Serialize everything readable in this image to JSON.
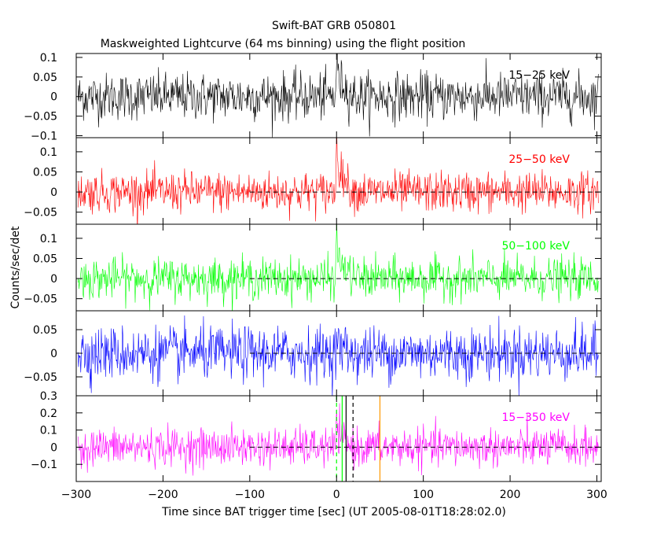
{
  "chart_data": {
    "type": "line",
    "title": "Swift-BAT GRB 050801",
    "subtitle": "Maskweighted Lightcurve (64 ms binning) using the flight position",
    "xlabel": "Time since BAT trigger time [sec] (UT 2005-08-01T18:28:02.0)",
    "ylabel": "Counts/sec/det",
    "xlim": [
      -300,
      305
    ],
    "x_ticks": [
      -300,
      -200,
      -100,
      0,
      100,
      200,
      300
    ],
    "x_tick_labels": [
      "−300",
      "−200",
      "−100",
      "0",
      "100",
      "200",
      "300"
    ],
    "bin_seconds": 0.064,
    "panels": [
      {
        "label": "15−25 keV",
        "color": "#000000",
        "ylim": [
          -0.105,
          0.11
        ],
        "yticks": [
          -0.1,
          -0.05,
          0,
          0.05,
          0.1
        ],
        "ytick_labels": [
          "−0.1",
          "−0.05",
          "0",
          "0.05",
          "0.1"
        ],
        "noise_sigma": 0.03,
        "burst_peak": 0.1,
        "zero_line": false
      },
      {
        "label": "25−50 keV",
        "color": "#ff0000",
        "ylim": [
          -0.08,
          0.135
        ],
        "yticks": [
          -0.05,
          0,
          0.05,
          0.1
        ],
        "ytick_labels": [
          "−0.05",
          "0",
          "0.05",
          "0.1"
        ],
        "noise_sigma": 0.025,
        "burst_peak": 0.13,
        "zero_line": true
      },
      {
        "label": "50−100 keV",
        "color": "#00ff00",
        "ylim": [
          -0.08,
          0.135
        ],
        "yticks": [
          -0.05,
          0,
          0.05,
          0.1
        ],
        "ytick_labels": [
          "−0.05",
          "0",
          "0.05",
          "0.1"
        ],
        "noise_sigma": 0.025,
        "burst_peak": 0.1,
        "zero_line": true
      },
      {
        "label": "",
        "color": "#0000ff",
        "ylim": [
          -0.09,
          0.09
        ],
        "yticks": [
          -0.05,
          0,
          0.05
        ],
        "ytick_labels": [
          "−0.05",
          "0",
          "0.05"
        ],
        "noise_sigma": 0.028,
        "burst_peak": 0.03,
        "zero_line": true
      },
      {
        "label": "15−350 keV",
        "color": "#ff00ff",
        "ylim": [
          -0.2,
          0.3
        ],
        "yticks": [
          -0.1,
          0,
          0.1,
          0.2,
          0.3
        ],
        "ytick_labels": [
          "−0.1",
          "0",
          "0.1",
          "0.2",
          "0.3"
        ],
        "noise_sigma": 0.055,
        "burst_peak": 0.15,
        "zero_line": true
      }
    ],
    "zero_line_from_x": -100,
    "markers": [
      {
        "x": 0,
        "color": "#00ff00",
        "style": "dashed"
      },
      {
        "x": 6.5,
        "color": "#00ff00",
        "style": "solid"
      },
      {
        "x": 11,
        "color": "#000000",
        "style": "solid"
      },
      {
        "x": 19,
        "color": "#000000",
        "style": "dashed"
      },
      {
        "x": 50,
        "color": "#ff9900",
        "style": "solid"
      }
    ]
  }
}
